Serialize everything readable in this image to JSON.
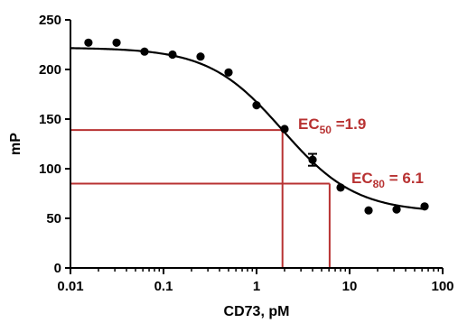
{
  "chart_data": {
    "type": "scatter",
    "xlabel": "CD73, pM",
    "ylabel": "mP",
    "xscale": "log",
    "xlim": [
      0.01,
      100
    ],
    "ylim": [
      0,
      250
    ],
    "xticks": [
      0.01,
      0.1,
      1,
      10,
      100
    ],
    "xtick_labels": [
      "0.01",
      "0.1",
      "1",
      "10",
      "100"
    ],
    "yticks": [
      0,
      50,
      100,
      150,
      200,
      250
    ],
    "ytick_labels": [
      "0",
      "50",
      "100",
      "150",
      "200",
      "250"
    ],
    "grid": false,
    "legend": "none",
    "points": {
      "x": [
        0.0156,
        0.0313,
        0.0625,
        0.125,
        0.25,
        0.5,
        1,
        2,
        4,
        8,
        16,
        32,
        64
      ],
      "y": [
        227,
        227,
        218,
        215,
        213,
        197,
        164,
        140,
        109,
        81,
        58,
        59,
        62
      ],
      "error_y": [
        2,
        2,
        2,
        2,
        2,
        2,
        2,
        3,
        6,
        2,
        2,
        2,
        2
      ]
    },
    "fit_curve": {
      "model": "4PL",
      "top": 222,
      "bottom": 56,
      "ec50": 1.9,
      "hill": 1.1
    },
    "annotations": [
      {
        "name": "ec50",
        "label_main": "EC",
        "label_sub": "50",
        "label_rest": " =1.9",
        "x": 1.9,
        "y": 139,
        "color": "#b83232"
      },
      {
        "name": "ec80",
        "label_main": "EC",
        "label_sub": "80",
        "label_rest": " = 6.1",
        "x": 6.1,
        "y": 85,
        "color": "#b83232"
      }
    ],
    "colors": {
      "points": "#000000",
      "curve": "#000000",
      "guides": "#b83232"
    }
  }
}
